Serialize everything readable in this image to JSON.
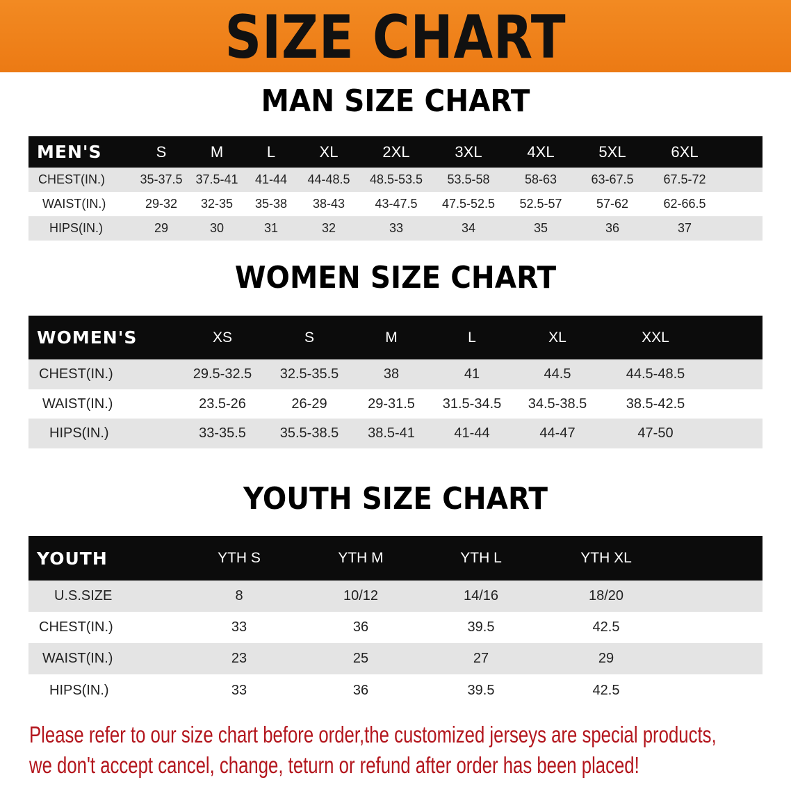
{
  "banner_title": "SIZE CHART",
  "men": {
    "title": "MAN SIZE CHART",
    "header": [
      "MEN'S",
      "S",
      "M",
      "L",
      "XL",
      "2XL",
      "3XL",
      "4XL",
      "5XL",
      "6XL"
    ],
    "rows": [
      [
        "CHEST(IN.)",
        "35-37.5",
        "37.5-41",
        "41-44",
        "44-48.5",
        "48.5-53.5",
        "53.5-58",
        "58-63",
        "63-67.5",
        "67.5-72"
      ],
      [
        "WAIST(IN.)",
        "29-32",
        "32-35",
        "35-38",
        "38-43",
        "43-47.5",
        "47.5-52.5",
        "52.5-57",
        "57-62",
        "62-66.5"
      ],
      [
        "HIPS(IN.)",
        "29",
        "30",
        "31",
        "32",
        "33",
        "34",
        "35",
        "36",
        "37"
      ]
    ]
  },
  "women": {
    "title": "WOMEN SIZE CHART",
    "header": [
      "WOMEN'S",
      "XS",
      "S",
      "M",
      "L",
      "XL",
      "XXL"
    ],
    "rows": [
      [
        "CHEST(IN.)",
        "29.5-32.5",
        "32.5-35.5",
        "38",
        "41",
        "44.5",
        "44.5-48.5"
      ],
      [
        "WAIST(IN.)",
        "23.5-26",
        "26-29",
        "29-31.5",
        "31.5-34.5",
        "34.5-38.5",
        "38.5-42.5"
      ],
      [
        "HIPS(IN.)",
        "33-35.5",
        "35.5-38.5",
        "38.5-41",
        "41-44",
        "44-47",
        "47-50"
      ]
    ]
  },
  "youth": {
    "title": "YOUTH SIZE CHART",
    "header": [
      "YOUTH",
      "YTH S",
      "YTH M",
      "YTH L",
      "YTH XL"
    ],
    "rows": [
      [
        "U.S.SIZE",
        "8",
        "10/12",
        "14/16",
        "18/20"
      ],
      [
        "CHEST(IN.)",
        "33",
        "36",
        "39.5",
        "42.5"
      ],
      [
        "WAIST(IN.)",
        "23",
        "25",
        "27",
        "29"
      ],
      [
        "HIPS(IN.)",
        "33",
        "36",
        "39.5",
        "42.5"
      ]
    ]
  },
  "notice": [
    "Please refer to our size chart before order,the customized jerseys are special products,",
    "we don't accept cancel, change, teturn or refund after order has been placed!"
  ],
  "colors": {
    "banner": "#ec7a14",
    "header_bg": "#0c0c0c",
    "stripe": "#e4e4e4",
    "notice": "#b3161d"
  }
}
